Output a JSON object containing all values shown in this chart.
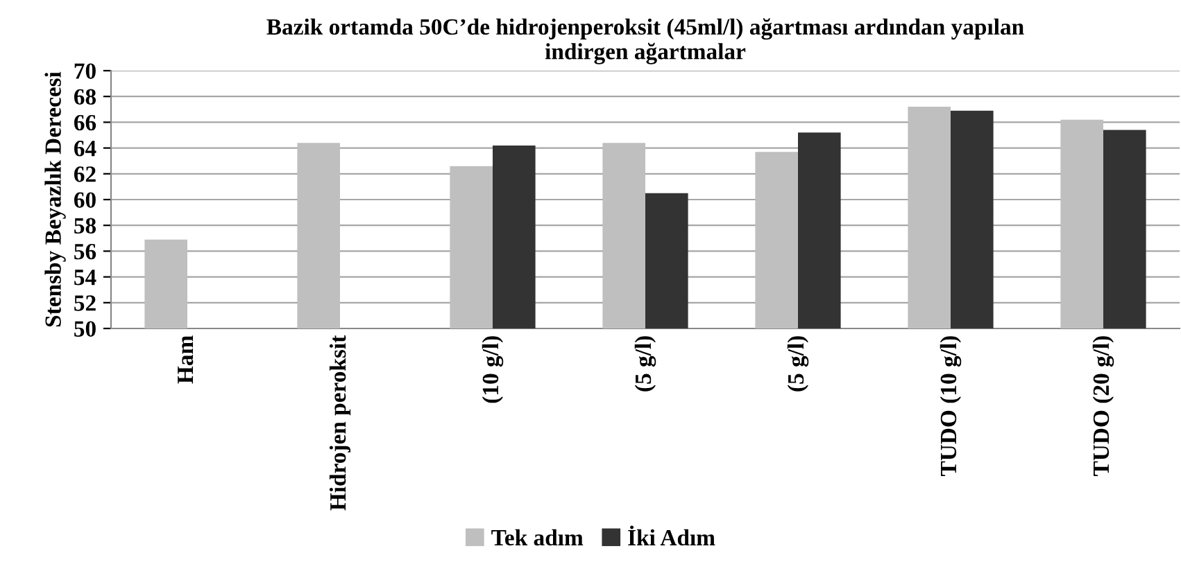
{
  "chart_data": {
    "type": "bar",
    "title": "Bazik ortamda 50C’de hidrojenperoksit (45ml/l) ağartması ardından yapılan\nindirgen ağartmalar",
    "ylabel": "Stensby Beyazlık Derecesi",
    "categories": [
      "Ham",
      "Hidrojen peroksit",
      "(10 g/l)",
      "(5 g/l)",
      "(5 g/l)",
      "TUDO (10 g/l)",
      "TUDO (20 g/l)"
    ],
    "series": [
      {
        "name": "Tek adım",
        "color": "#bfbfbf",
        "values": [
          56.9,
          64.4,
          62.6,
          64.4,
          63.7,
          67.2,
          66.2
        ]
      },
      {
        "name": "İki Adım",
        "color": "#333333",
        "values": [
          null,
          null,
          64.2,
          60.5,
          65.2,
          66.9,
          65.4
        ]
      }
    ],
    "ylim": [
      50,
      70
    ],
    "yticks": [
      50,
      52,
      54,
      56,
      58,
      60,
      62,
      64,
      66,
      68,
      70
    ],
    "grid": "y",
    "legend": "bottom"
  }
}
